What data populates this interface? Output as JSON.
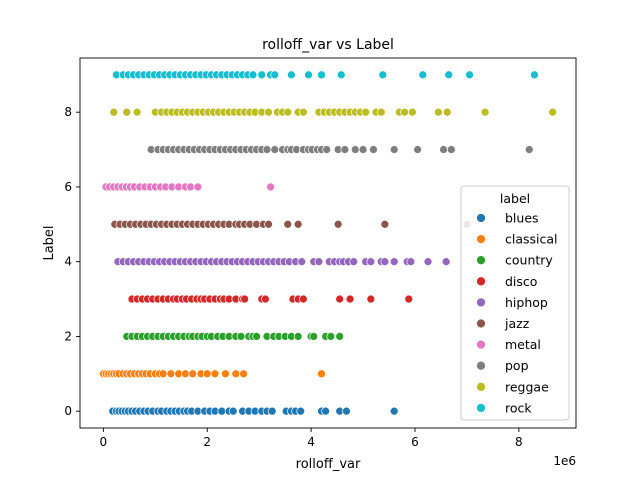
{
  "chart_data": {
    "type": "scatter",
    "title": "rolloff_var vs Label",
    "xlabel": "rolloff_var",
    "ylabel": "Label",
    "x_offset_text": "1e6",
    "xlim": [
      -0.45,
      9.1
    ],
    "ylim": [
      -0.45,
      9.45
    ],
    "x_scale_multiplier": 1000000,
    "xticks": [
      0,
      2,
      4,
      6,
      8
    ],
    "yticks": [
      0,
      2,
      4,
      6,
      8
    ],
    "grid": false,
    "legend": {
      "title": "label",
      "placement": "center-right"
    },
    "series": [
      {
        "name": "blues",
        "color": "#1f77b4",
        "y": 0,
        "x": [
          0.18,
          0.25,
          0.3,
          0.36,
          0.42,
          0.48,
          0.55,
          0.62,
          0.7,
          0.78,
          0.86,
          0.95,
          1.05,
          1.12,
          1.22,
          1.3,
          1.38,
          1.46,
          1.55,
          1.62,
          1.7,
          1.82,
          1.95,
          2.05,
          2.15,
          2.28,
          2.42,
          2.5,
          2.68,
          2.8,
          2.92,
          3.05,
          3.15,
          3.25,
          3.52,
          3.62,
          3.7,
          3.8,
          4.2,
          4.28,
          4.55,
          4.68,
          5.6
        ]
      },
      {
        "name": "classical",
        "color": "#ff7f0e",
        "y": 1,
        "x": [
          0.0,
          0.05,
          0.1,
          0.15,
          0.2,
          0.25,
          0.3,
          0.38,
          0.45,
          0.52,
          0.6,
          0.68,
          0.75,
          0.82,
          0.9,
          1.0,
          1.08,
          1.15,
          1.3,
          1.45,
          1.58,
          1.72,
          1.88,
          2.0,
          2.15,
          2.35,
          2.55,
          2.7,
          4.2
        ]
      },
      {
        "name": "country",
        "color": "#2ca02c",
        "y": 2,
        "x": [
          0.45,
          0.55,
          0.65,
          0.75,
          0.85,
          0.95,
          1.05,
          1.15,
          1.25,
          1.35,
          1.45,
          1.55,
          1.65,
          1.72,
          1.82,
          1.9,
          2.0,
          2.08,
          2.2,
          2.3,
          2.42,
          2.55,
          2.65,
          2.8,
          2.88,
          2.95,
          3.15,
          3.28,
          3.38,
          3.5,
          3.62,
          3.75,
          4.0,
          4.05,
          4.28,
          4.38,
          4.55
        ]
      },
      {
        "name": "disco",
        "color": "#d62728",
        "y": 3,
        "x": [
          0.55,
          0.65,
          0.75,
          0.85,
          0.95,
          1.05,
          1.15,
          1.25,
          1.35,
          1.42,
          1.52,
          1.6,
          1.7,
          1.8,
          1.88,
          1.95,
          2.05,
          2.15,
          2.25,
          2.32,
          2.42,
          2.55,
          2.68,
          2.72,
          3.05,
          3.12,
          3.65,
          3.75,
          3.85,
          4.55,
          4.75,
          5.15,
          5.88
        ]
      },
      {
        "name": "hiphop",
        "color": "#9467bd",
        "y": 4,
        "x": [
          0.28,
          0.38,
          0.48,
          0.58,
          0.68,
          0.78,
          0.88,
          0.98,
          1.08,
          1.18,
          1.28,
          1.38,
          1.48,
          1.58,
          1.68,
          1.78,
          1.88,
          1.98,
          2.08,
          2.18,
          2.28,
          2.38,
          2.48,
          2.58,
          2.68,
          2.78,
          2.88,
          2.98,
          3.08,
          3.18,
          3.28,
          3.38,
          3.48,
          3.58,
          3.7,
          3.82,
          4.05,
          4.15,
          4.35,
          4.45,
          4.55,
          4.62,
          4.72,
          4.82,
          5.05,
          5.15,
          5.35,
          5.42,
          5.6,
          5.85,
          5.92,
          6.25,
          6.6
        ]
      },
      {
        "name": "jazz",
        "color": "#8c564b",
        "y": 5,
        "x": [
          0.22,
          0.32,
          0.42,
          0.52,
          0.62,
          0.72,
          0.82,
          0.92,
          1.02,
          1.12,
          1.22,
          1.32,
          1.42,
          1.52,
          1.62,
          1.72,
          1.82,
          1.92,
          2.02,
          2.12,
          2.22,
          2.32,
          2.42,
          2.55,
          2.62,
          2.72,
          2.82,
          2.95,
          3.08,
          3.18,
          3.55,
          3.75,
          4.52,
          5.42,
          7.0
        ]
      },
      {
        "name": "metal",
        "color": "#e377c2",
        "y": 6,
        "x": [
          0.05,
          0.12,
          0.2,
          0.28,
          0.36,
          0.44,
          0.52,
          0.6,
          0.7,
          0.8,
          0.9,
          1.0,
          1.1,
          1.2,
          1.32,
          1.45,
          1.58,
          1.68,
          1.82,
          3.22
        ]
      },
      {
        "name": "pop",
        "color": "#7f7f7f",
        "y": 7,
        "x": [
          0.92,
          1.05,
          1.15,
          1.25,
          1.35,
          1.45,
          1.55,
          1.65,
          1.75,
          1.85,
          1.95,
          2.05,
          2.15,
          2.25,
          2.35,
          2.45,
          2.55,
          2.65,
          2.75,
          2.85,
          2.95,
          3.05,
          3.15,
          3.3,
          3.45,
          3.55,
          3.62,
          3.72,
          3.85,
          3.95,
          4.02,
          4.12,
          4.2,
          4.3,
          4.52,
          4.65,
          4.85,
          5.0,
          5.2,
          5.6,
          6.05,
          6.55,
          6.7,
          8.2
        ]
      },
      {
        "name": "reggae",
        "color": "#bcbd22",
        "y": 8,
        "x": [
          0.2,
          0.45,
          0.65,
          1.0,
          1.12,
          1.22,
          1.32,
          1.42,
          1.52,
          1.62,
          1.72,
          1.82,
          1.92,
          2.02,
          2.12,
          2.22,
          2.32,
          2.42,
          2.52,
          2.62,
          2.72,
          2.82,
          2.92,
          3.05,
          3.18,
          3.35,
          3.45,
          3.55,
          3.75,
          3.85,
          4.15,
          4.25,
          4.35,
          4.45,
          4.55,
          4.65,
          4.75,
          4.85,
          4.95,
          5.05,
          5.25,
          5.35,
          5.7,
          5.8,
          5.95,
          6.45,
          6.62,
          7.35,
          8.65
        ]
      },
      {
        "name": "rock",
        "color": "#17becf",
        "y": 9,
        "x": [
          0.25,
          0.38,
          0.48,
          0.58,
          0.68,
          0.78,
          0.88,
          0.98,
          1.08,
          1.18,
          1.28,
          1.38,
          1.48,
          1.58,
          1.68,
          1.78,
          1.88,
          1.98,
          2.08,
          2.18,
          2.28,
          2.38,
          2.48,
          2.58,
          2.68,
          2.78,
          2.88,
          3.05,
          3.22,
          3.3,
          3.62,
          3.95,
          4.2,
          4.58,
          5.38,
          6.15,
          6.65,
          7.05,
          8.3
        ]
      }
    ]
  }
}
